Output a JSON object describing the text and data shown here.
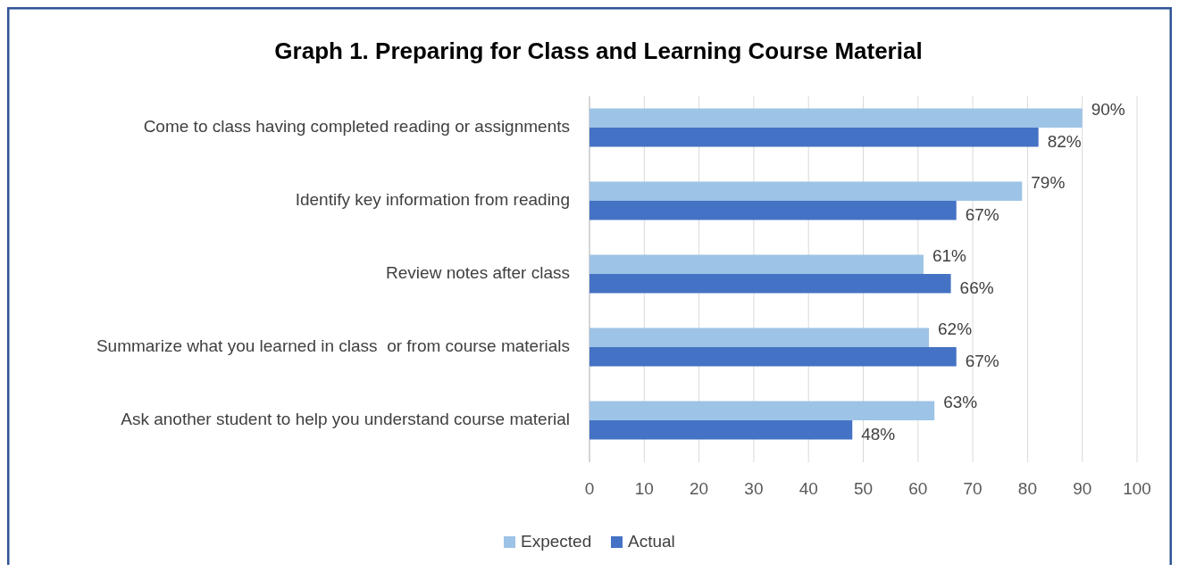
{
  "chart_data": {
    "type": "bar",
    "orientation": "horizontal",
    "title": "Graph 1. Preparing for Class and Learning Course Material",
    "categories": [
      "Come to class having completed reading or assignments",
      "Identify key information from reading",
      "Review notes after class",
      "Summarize what you learned in class  or from course materials",
      "Ask another student to help you understand course material"
    ],
    "series": [
      {
        "name": "Expected",
        "color": "#9dc3e6",
        "values": [
          90,
          79,
          61,
          62,
          63
        ],
        "value_labels": [
          "90%",
          "79%",
          "61%",
          "62%",
          "63%"
        ]
      },
      {
        "name": "Actual",
        "color": "#4472c4",
        "values": [
          82,
          67,
          66,
          67,
          48
        ],
        "value_labels": [
          "82%",
          "67%",
          "66%",
          "67%",
          "48%"
        ]
      }
    ],
    "xlim": [
      0,
      100
    ],
    "xticks": [
      0,
      10,
      20,
      30,
      40,
      50,
      60,
      70,
      80,
      90,
      100
    ],
    "grid": "x",
    "legend": "bottom"
  }
}
